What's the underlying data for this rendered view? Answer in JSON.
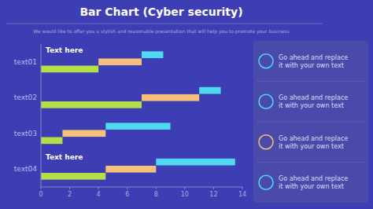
{
  "chart_data": {
    "type": "bar",
    "orientation": "horizontal",
    "stacked": true,
    "title": "Bar Chart (Cyber security)",
    "subtitle": "We would like to offer you a stylish and reasonable presentation that will help you to promote your business",
    "categories": [
      "text04",
      "text03",
      "text02",
      "text01"
    ],
    "series": [
      {
        "color": "#b3e047",
        "values": [
          4.5,
          1.5,
          7.0,
          4.0
        ]
      },
      {
        "color": "#f5c07a",
        "values": [
          3.5,
          3.0,
          4.0,
          3.0
        ]
      },
      {
        "color": "#4dd9ef",
        "values": [
          5.5,
          4.5,
          1.5,
          1.5
        ]
      }
    ],
    "xlim": [
      0,
      14
    ],
    "xticks": [
      0,
      2,
      4,
      6,
      8,
      10,
      12,
      14
    ],
    "grid": false,
    "annotations": [
      "Text here",
      "Text here"
    ],
    "panel_texts": [
      "Go ahead and replace\nit with your own text",
      "Go ahead and replace\nit with your own text",
      "Go ahead and replace\nit with your own text",
      "Go ahead and replace\nit with your own text"
    ],
    "panel_icon_colors": [
      "#4dd9ef",
      "#4dd9ef",
      "#f5c07a",
      "#4dd9ef"
    ]
  }
}
